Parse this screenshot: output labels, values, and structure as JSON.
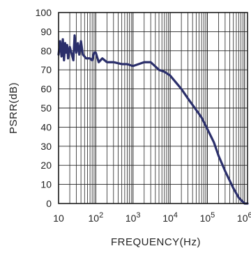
{
  "chart_data": {
    "type": "line",
    "xlabel": "FREQUENCY(Hz)",
    "ylabel": "PSRR(dB)",
    "x_scale": "log",
    "xlim": [
      10,
      1200000
    ],
    "ylim": [
      0,
      100
    ],
    "grid": true,
    "series_color": "#2b2f6b",
    "x_ticks": [
      {
        "value": 10,
        "base": "10",
        "exp": ""
      },
      {
        "value": 100,
        "base": "10",
        "exp": "2"
      },
      {
        "value": 1000,
        "base": "10",
        "exp": "3"
      },
      {
        "value": 10000,
        "base": "10",
        "exp": "4"
      },
      {
        "value": 100000,
        "base": "10",
        "exp": "5"
      },
      {
        "value": 1000000,
        "base": "10",
        "exp": "6"
      }
    ],
    "y_ticks": [
      "0",
      "10",
      "20",
      "30",
      "40",
      "50",
      "60",
      "70",
      "80",
      "90",
      "100"
    ],
    "series": [
      {
        "x": [
          10,
          11,
          12,
          13,
          14,
          15,
          16,
          17,
          18,
          20,
          22,
          25,
          27,
          30,
          33,
          36,
          40,
          45,
          50,
          55,
          60,
          70,
          80,
          90,
          100,
          120,
          150,
          200,
          300,
          500,
          700,
          1000,
          2000,
          3000,
          5000,
          7000,
          10000,
          20000,
          30000,
          50000,
          70000,
          100000,
          150000,
          200000,
          300000,
          500000,
          700000,
          1000000,
          1200000
        ],
        "y": [
          78,
          85,
          77,
          86,
          75,
          84,
          79,
          83,
          76,
          82,
          79,
          75,
          88,
          79,
          84,
          78,
          85,
          78,
          77,
          76,
          76,
          76,
          75,
          79,
          79,
          74,
          76,
          74,
          74,
          73,
          73,
          72,
          74,
          74,
          70,
          69,
          67,
          60,
          55,
          49,
          45,
          39,
          32,
          25,
          17,
          8,
          3,
          0,
          0
        ]
      }
    ]
  }
}
